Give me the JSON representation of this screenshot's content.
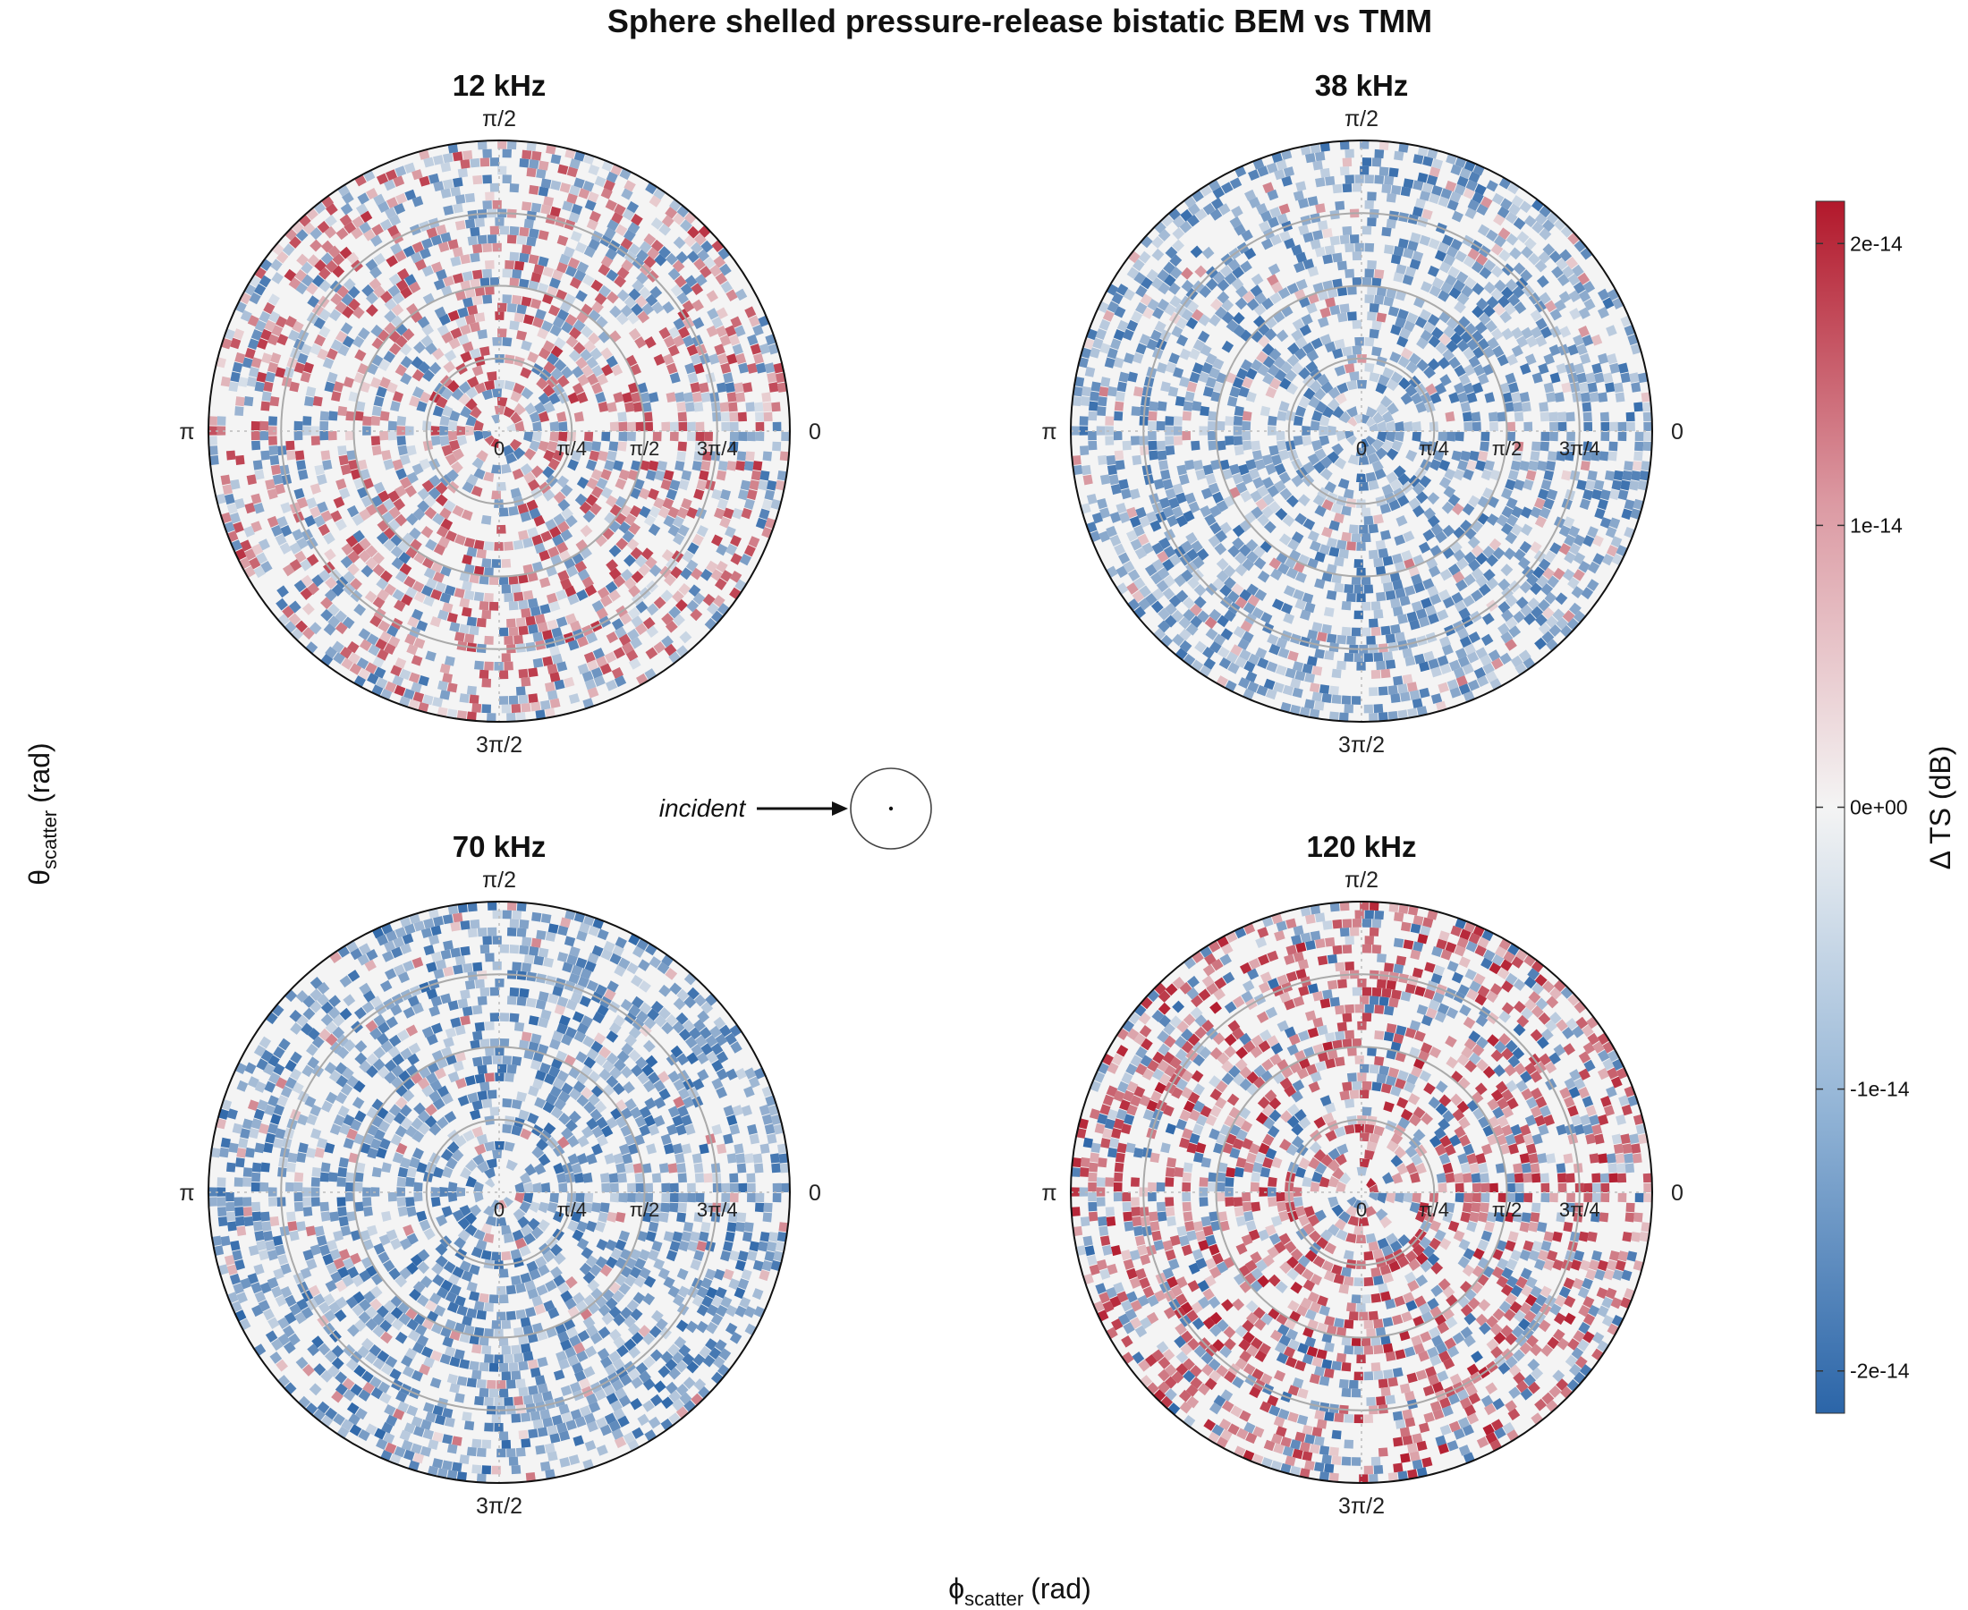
{
  "figure": {
    "title": "Sphere shelled pressure-release bistatic BEM vs TMM",
    "x_axis_title": "ϕ",
    "x_axis_sub": "scatter",
    "x_axis_unit": "(rad)",
    "y_axis_title": "θ",
    "y_axis_sub": "scatter",
    "y_axis_unit": "(rad)",
    "incident_label": "incident"
  },
  "chart_data": {
    "type": "heatmap",
    "coordinate_system": "polar",
    "angular_ticks": [
      "0",
      "π/2",
      "π",
      "3π/2"
    ],
    "radial_ticks": [
      "0",
      "π/4",
      "π/2",
      "3π/4"
    ],
    "radial_range": [
      0,
      3.14159
    ],
    "colorbar": {
      "title": "Δ TS (dB)",
      "range": [
        -2.15e-14,
        2.15e-14
      ],
      "ticks": [
        "2e-14",
        "1e-14",
        "0e+00",
        "-1e-14",
        "-2e-14"
      ],
      "tick_values": [
        2e-14,
        1e-14,
        0,
        -1e-14,
        -2e-14
      ],
      "low_color": "#2b65a8",
      "mid_color": "#f4f4f4",
      "high_color": "#b2182b"
    },
    "panels": [
      {
        "title": "12 kHz",
        "dominant_sign": "mixed",
        "max_abs_delta_ts": 2e-14
      },
      {
        "title": "38 kHz",
        "dominant_sign": "negative",
        "max_abs_delta_ts": 2e-14
      },
      {
        "title": "70 kHz",
        "dominant_sign": "negative",
        "max_abs_delta_ts": 2.1e-14
      },
      {
        "title": "120 kHz",
        "dominant_sign": "mixed-positive",
        "max_abs_delta_ts": 2.1e-14
      }
    ]
  }
}
